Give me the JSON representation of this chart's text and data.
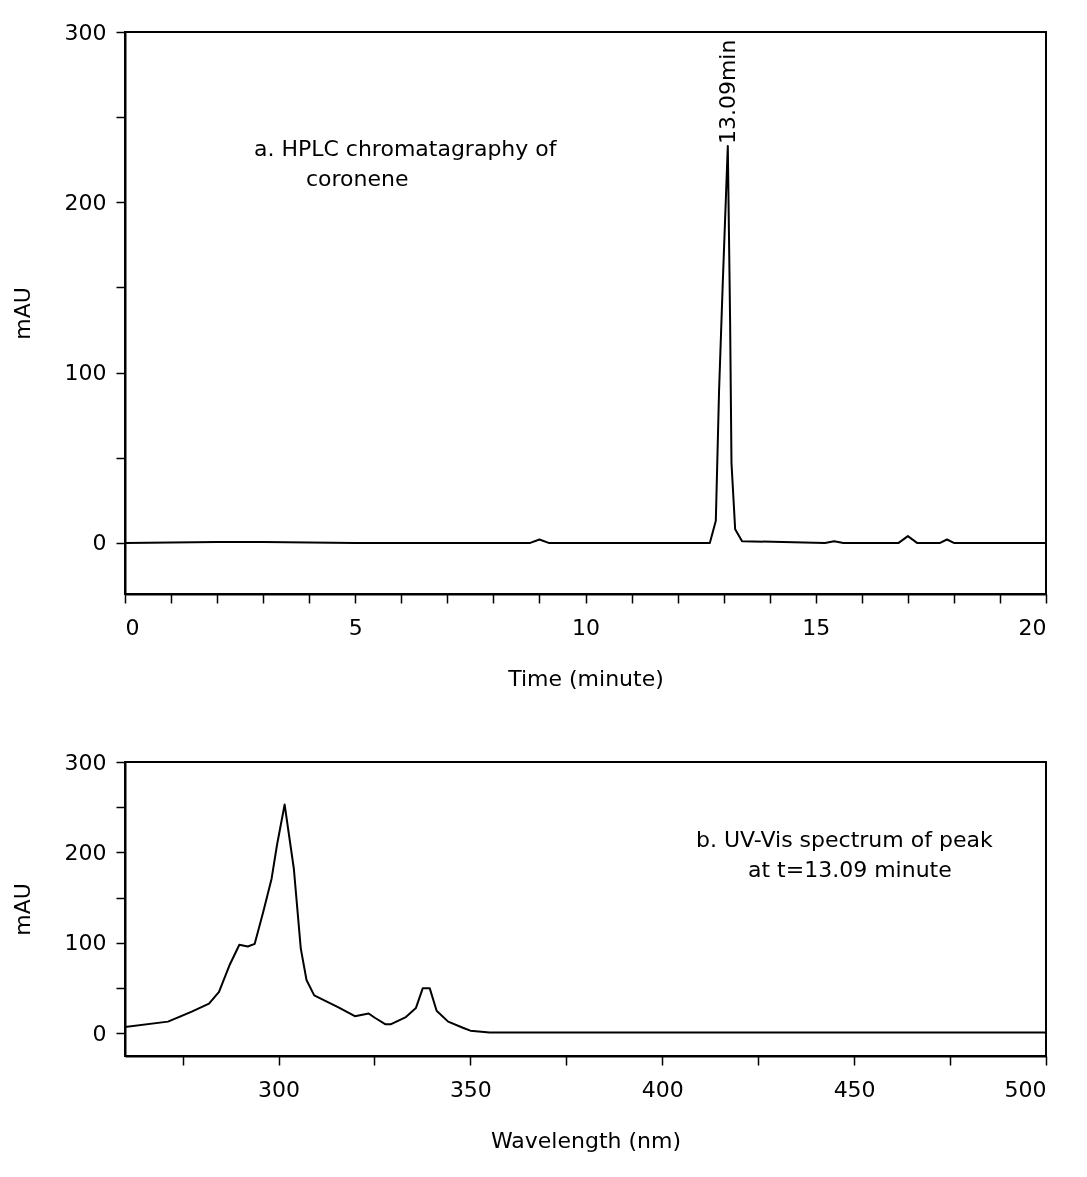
{
  "chart_data": [
    {
      "type": "line",
      "title": "a. HPLC chromatagraphy of coronene",
      "xlabel": "Time (minute)",
      "ylabel": "mAU",
      "series": [
        {
          "color": "#000000",
          "x": [
            0,
            2,
            3,
            5,
            8.8,
            9.0,
            9.2,
            12.7,
            12.83,
            12.9,
            12.98,
            13.09,
            13.14,
            13.17,
            13.25,
            13.4,
            15.2,
            15.4,
            15.6,
            16.8,
            17.0,
            17.2,
            17.7,
            17.85,
            18.0,
            20
          ],
          "values": [
            0,
            0.5,
            0.5,
            0,
            0,
            2,
            0,
            0,
            13,
            89,
            152,
            233,
            131,
            47,
            8,
            1,
            0,
            1,
            0,
            0,
            4,
            0,
            0,
            2,
            0,
            0
          ]
        }
      ],
      "xlim": [
        0,
        20
      ],
      "ylim": [
        -30,
        300
      ],
      "xticks": [
        0,
        {
          "value": 1,
          "label": null
        },
        {
          "value": 2,
          "label": null
        },
        {
          "value": 3,
          "label": null
        },
        {
          "value": 4,
          "label": null
        },
        5,
        {
          "value": 6,
          "label": null
        },
        {
          "value": 7,
          "label": null
        },
        {
          "value": 8,
          "label": null
        },
        {
          "value": 9,
          "label": null
        },
        10,
        {
          "value": 11,
          "label": null
        },
        {
          "value": 12,
          "label": null
        },
        {
          "value": 13,
          "label": null
        },
        {
          "value": 14,
          "label": null
        },
        15,
        {
          "value": 16,
          "label": null
        },
        {
          "value": 17,
          "label": null
        },
        {
          "value": 18,
          "label": null
        },
        {
          "value": 19,
          "label": null
        },
        20
      ],
      "yticks": [
        0,
        {
          "value": 50,
          "label": null
        },
        100,
        {
          "value": 150,
          "label": null
        },
        200,
        {
          "value": 250,
          "label": null
        },
        300
      ],
      "annotations": [
        {
          "text": "13.09min",
          "x": 13.09,
          "y": 233
        }
      ],
      "grid": false
    },
    {
      "type": "line",
      "title": "b. UV-Vis spectrum of peak at t=13.09 minute",
      "xlabel": "Wavelength (nm)",
      "ylabel": "mAU",
      "series": [
        {
          "color": "#000000",
          "x": [
            260,
            271.2,
            277.4,
            281.9,
            284.5,
            287.2,
            289.8,
            292,
            293.8,
            296,
            298.2,
            299.6,
            301.6,
            304,
            305.8,
            307.3,
            309.3,
            315.5,
            319.9,
            323.5,
            325.2,
            327.9,
            329.2,
            333.2,
            335.8,
            337.6,
            339.4,
            341.2,
            344.2,
            348.2,
            350,
            355,
            365,
            500
          ],
          "values": [
            7,
            13,
            24,
            33,
            46,
            75,
            98,
            96,
            99,
            134,
            171,
            208,
            253,
            182,
            94,
            59,
            42,
            29,
            19,
            22,
            17,
            10,
            10,
            18,
            28,
            50,
            50,
            25,
            13,
            6,
            3,
            1,
            1,
            1
          ]
        }
      ],
      "xlim": [
        260,
        500
      ],
      "ylim": [
        -25,
        300
      ],
      "xticks": [
        {
          "value": 275,
          "label": null
        },
        300,
        {
          "value": 325,
          "label": null
        },
        350,
        {
          "value": 375,
          "label": null
        },
        400,
        {
          "value": 425,
          "label": null
        },
        450,
        {
          "value": 475,
          "label": null
        },
        500
      ],
      "yticks": [
        0,
        {
          "value": 50,
          "label": null
        },
        100,
        {
          "value": 150,
          "label": null
        },
        200,
        {
          "value": 250,
          "label": null
        },
        300
      ],
      "grid": false
    }
  ]
}
